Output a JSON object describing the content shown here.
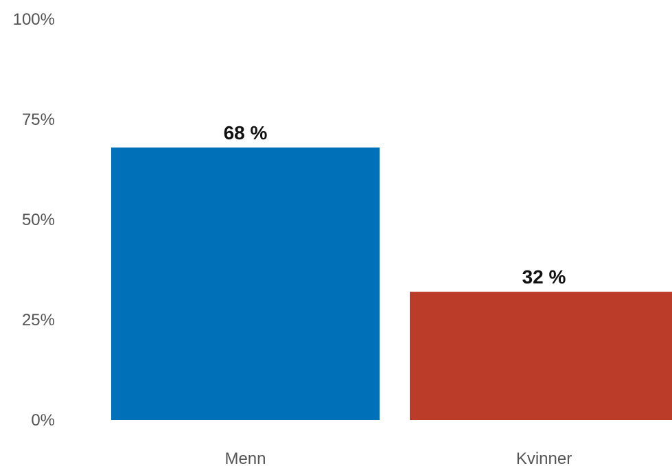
{
  "chart_data": {
    "type": "bar",
    "title": "",
    "xlabel": "",
    "ylabel": "",
    "categories": [
      "Menn",
      "Kvinner"
    ],
    "values": [
      68,
      32
    ],
    "data_labels": [
      "68 %",
      "32 %"
    ],
    "colors": [
      "#0070b8",
      "#bc3c2a"
    ],
    "ylim": [
      0,
      100
    ],
    "yticks": [
      0,
      25,
      50,
      75,
      100
    ],
    "ytick_labels": [
      "0%",
      "25%",
      "50%",
      "75%",
      "100%"
    ],
    "grid": false,
    "legend": "none"
  }
}
